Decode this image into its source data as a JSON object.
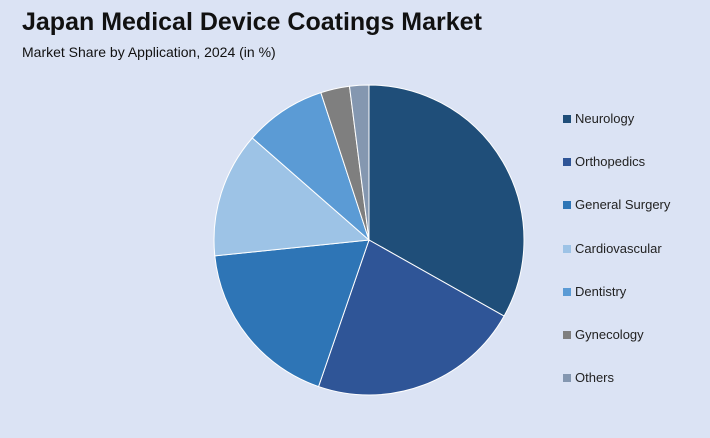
{
  "header": {
    "title": "Japan Medical Device Coatings Market",
    "subtitle": "Market Share by Application, 2024 (in %)"
  },
  "colors": {
    "background": "#dbe3f4",
    "slice_border": "#ffffff"
  },
  "chart_data": {
    "type": "pie",
    "title": "Japan Medical Device Coatings Market",
    "subtitle": "Market Share by Application, 2024 (in %)",
    "legend_position": "right",
    "start_angle": "12 o'clock",
    "direction": "clockwise",
    "slices": [
      {
        "label": "Neurology",
        "value": 33.0,
        "color": "#1f4e79"
      },
      {
        "label": "Orthopedics",
        "value": 22.0,
        "color": "#2f5597"
      },
      {
        "label": "General Surgery",
        "value": 18.0,
        "color": "#2e75b6"
      },
      {
        "label": "Cardiovascular",
        "value": 13.0,
        "color": "#9dc3e6"
      },
      {
        "label": "Dentistry",
        "value": 8.5,
        "color": "#5b9bd5"
      },
      {
        "label": "Gynecology",
        "value": 3.0,
        "color": "#7f7f7f"
      },
      {
        "label": "Others",
        "value": 2.0,
        "color": "#8497b0"
      }
    ]
  }
}
